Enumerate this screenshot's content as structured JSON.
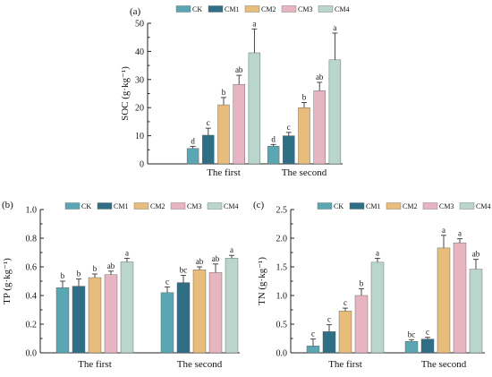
{
  "chart_data": [
    {
      "type": "bar",
      "panel": "(a)",
      "ylabel": "SOC (g·kg⁻¹)",
      "ylim": [
        0,
        50
      ],
      "yticks": [
        "0",
        "10",
        "20",
        "30",
        "40",
        "50"
      ],
      "categories": [
        "The first",
        "The second"
      ],
      "legend": [
        "CK",
        "CM1",
        "CM2",
        "CM3",
        "CM4"
      ],
      "series": [
        {
          "name": "CK",
          "values": [
            5.5,
            6.3
          ],
          "errors": [
            0.7,
            0.6
          ],
          "labels": [
            "d",
            "d"
          ]
        },
        {
          "name": "CM1",
          "values": [
            10.2,
            10.0
          ],
          "errors": [
            2.5,
            1.2
          ],
          "labels": [
            "c",
            "c"
          ]
        },
        {
          "name": "CM2",
          "values": [
            21.0,
            20.0
          ],
          "errors": [
            2.6,
            1.8
          ],
          "labels": [
            "b",
            "b"
          ]
        },
        {
          "name": "CM3",
          "values": [
            28.3,
            26.0
          ],
          "errors": [
            3.2,
            3.0
          ],
          "labels": [
            "ab",
            "ab"
          ]
        },
        {
          "name": "CM4",
          "values": [
            39.5,
            37.0
          ],
          "errors": [
            8.5,
            9.5
          ],
          "labels": [
            "a",
            "a"
          ]
        }
      ]
    },
    {
      "type": "bar",
      "panel": "(b)",
      "ylabel": "TP (g·kg⁻¹)",
      "ylim": [
        0,
        1.0
      ],
      "yticks": [
        "0.0",
        "0.2",
        "0.4",
        "0.6",
        "0.8",
        "1.0"
      ],
      "categories": [
        "The first",
        "The second"
      ],
      "legend": [
        "CK",
        "CM1",
        "CM2",
        "CM3",
        "CM4"
      ],
      "series": [
        {
          "name": "CK",
          "values": [
            0.455,
            0.42
          ],
          "errors": [
            0.045,
            0.04
          ],
          "labels": [
            "b",
            "c"
          ]
        },
        {
          "name": "CM1",
          "values": [
            0.465,
            0.49
          ],
          "errors": [
            0.05,
            0.05
          ],
          "labels": [
            "b",
            "bc"
          ]
        },
        {
          "name": "CM2",
          "values": [
            0.525,
            0.58
          ],
          "errors": [
            0.025,
            0.02
          ],
          "labels": [
            "b",
            "ab"
          ]
        },
        {
          "name": "CM3",
          "values": [
            0.545,
            0.56
          ],
          "errors": [
            0.025,
            0.06
          ],
          "labels": [
            "ab",
            "ab"
          ]
        },
        {
          "name": "CM4",
          "values": [
            0.635,
            0.66
          ],
          "errors": [
            0.025,
            0.02
          ],
          "labels": [
            "a",
            "a"
          ]
        }
      ]
    },
    {
      "type": "bar",
      "panel": "(c)",
      "ylabel": "TN (g·kg⁻¹)",
      "ylim": [
        0,
        2.5
      ],
      "yticks": [
        "0.0",
        "0.5",
        "1.0",
        "1.5",
        "2.0",
        "2.5"
      ],
      "categories": [
        "The first",
        "The second"
      ],
      "legend": [
        "CK",
        "CM1",
        "CM2",
        "CM3",
        "CM4"
      ],
      "series": [
        {
          "name": "CK",
          "values": [
            0.12,
            0.2
          ],
          "errors": [
            0.12,
            0.03
          ],
          "labels": [
            "c",
            "bc"
          ]
        },
        {
          "name": "CM1",
          "values": [
            0.37,
            0.24
          ],
          "errors": [
            0.12,
            0.03
          ],
          "labels": [
            "c",
            "c"
          ]
        },
        {
          "name": "CM2",
          "values": [
            0.73,
            1.83
          ],
          "errors": [
            0.05,
            0.22
          ],
          "labels": [
            "c",
            "a"
          ]
        },
        {
          "name": "CM3",
          "values": [
            1.0,
            1.92
          ],
          "errors": [
            0.12,
            0.07
          ],
          "labels": [
            "b",
            "a"
          ]
        },
        {
          "name": "CM4",
          "values": [
            1.58,
            1.46
          ],
          "errors": [
            0.07,
            0.17
          ],
          "labels": [
            "a",
            "ab"
          ]
        }
      ]
    }
  ],
  "colors": {
    "CK": "#5aa6b3",
    "CM1": "#2f6e85",
    "CM2": "#e8bd7b",
    "CM3": "#e7b4c2",
    "CM4": "#b9d5cc"
  }
}
